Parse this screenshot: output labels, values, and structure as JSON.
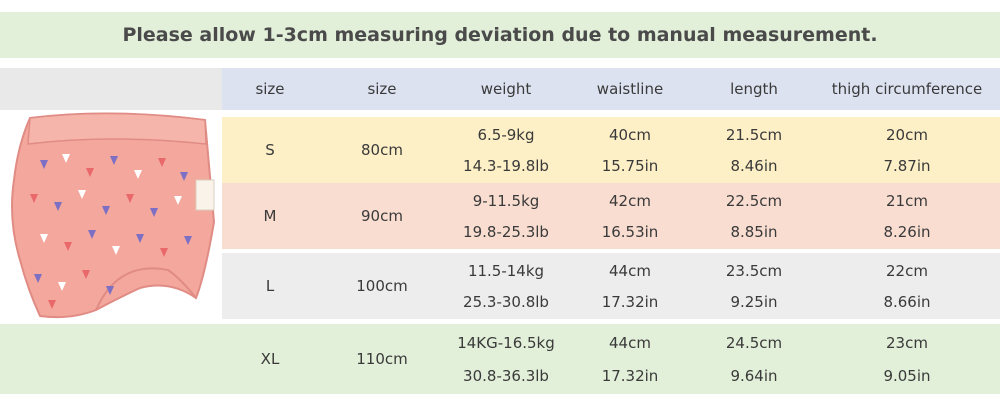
{
  "banner": {
    "text": "Please allow 1-3cm measuring deviation due to manual measurement."
  },
  "headers": [
    "size",
    "size",
    "weight",
    "waistline",
    "length",
    "thigh circumference"
  ],
  "rows": [
    {
      "size": "S",
      "size_cm": "80cm",
      "weight": [
        "6.5-9kg",
        "14.3-19.8lb"
      ],
      "waistline": [
        "40cm",
        "15.75in"
      ],
      "length": [
        "21.5cm",
        "8.46in"
      ],
      "thigh": [
        "20cm",
        "7.87in"
      ]
    },
    {
      "size": "M",
      "size_cm": "90cm",
      "weight": [
        "9-11.5kg",
        "19.8-25.3lb"
      ],
      "waistline": [
        "42cm",
        "16.53in"
      ],
      "length": [
        "22.5cm",
        "8.85in"
      ],
      "thigh": [
        "21cm",
        "8.26in"
      ]
    },
    {
      "size": "L",
      "size_cm": "100cm",
      "weight": [
        "11.5-14kg",
        "25.3-30.8lb"
      ],
      "waistline": [
        "44cm",
        "17.32in"
      ],
      "length": [
        "23.5cm",
        "9.25in"
      ],
      "thigh": [
        "22cm",
        "8.66in"
      ]
    },
    {
      "size": "XL",
      "size_cm": "110cm",
      "weight": [
        "14KG-16.5kg",
        "30.8-36.3lb"
      ],
      "waistline": [
        "44cm",
        "17.32in"
      ],
      "length": [
        "24.5cm",
        "9.64in"
      ],
      "thigh": [
        "23cm",
        "9.05in"
      ]
    }
  ],
  "product_image": {
    "icon": "training-pants-image",
    "base_color": "#f3a79d"
  }
}
